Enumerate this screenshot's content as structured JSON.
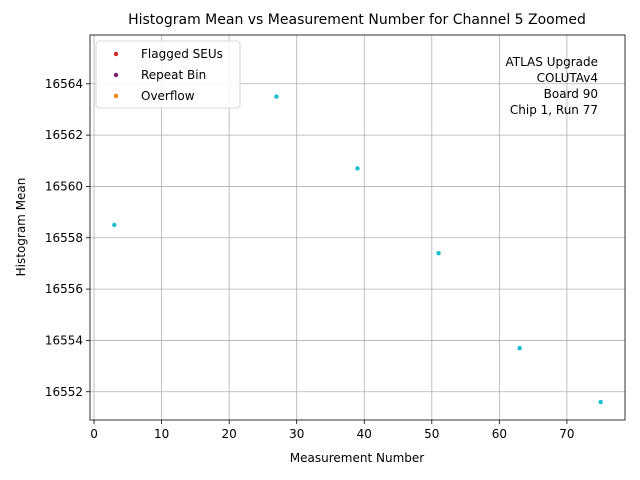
{
  "chart_data": {
    "type": "scatter",
    "title": "Histogram Mean vs Measurement Number for Channel 5 Zoomed",
    "xlabel": "Measurement Number",
    "ylabel": "Histogram Mean",
    "xlim": [
      -0.6,
      78.6
    ],
    "ylim": [
      16550.9,
      16565.9
    ],
    "xticks": [
      0,
      10,
      20,
      30,
      40,
      50,
      60,
      70
    ],
    "yticks": [
      16552,
      16554,
      16556,
      16558,
      16560,
      16562,
      16564
    ],
    "grid": true,
    "legend_position": "top-left",
    "annotation": [
      "ATLAS Upgrade",
      "COLUTAv4",
      "Board 90",
      "Chip 1, Run 77"
    ],
    "series": [
      {
        "name": "",
        "color": "#17becf",
        "x": [
          3,
          27,
          39,
          51,
          63,
          75
        ],
        "y": [
          16558.5,
          16563.5,
          16560.7,
          16557.4,
          16553.7,
          16551.6
        ]
      },
      {
        "name": "Flagged SEUs",
        "color": "#d62728",
        "x": [],
        "y": []
      },
      {
        "name": "Repeat Bin",
        "color": "#7b1f6a",
        "x": [],
        "y": []
      },
      {
        "name": "Overflow",
        "color": "#ff7f0e",
        "x": [],
        "y": []
      }
    ]
  }
}
